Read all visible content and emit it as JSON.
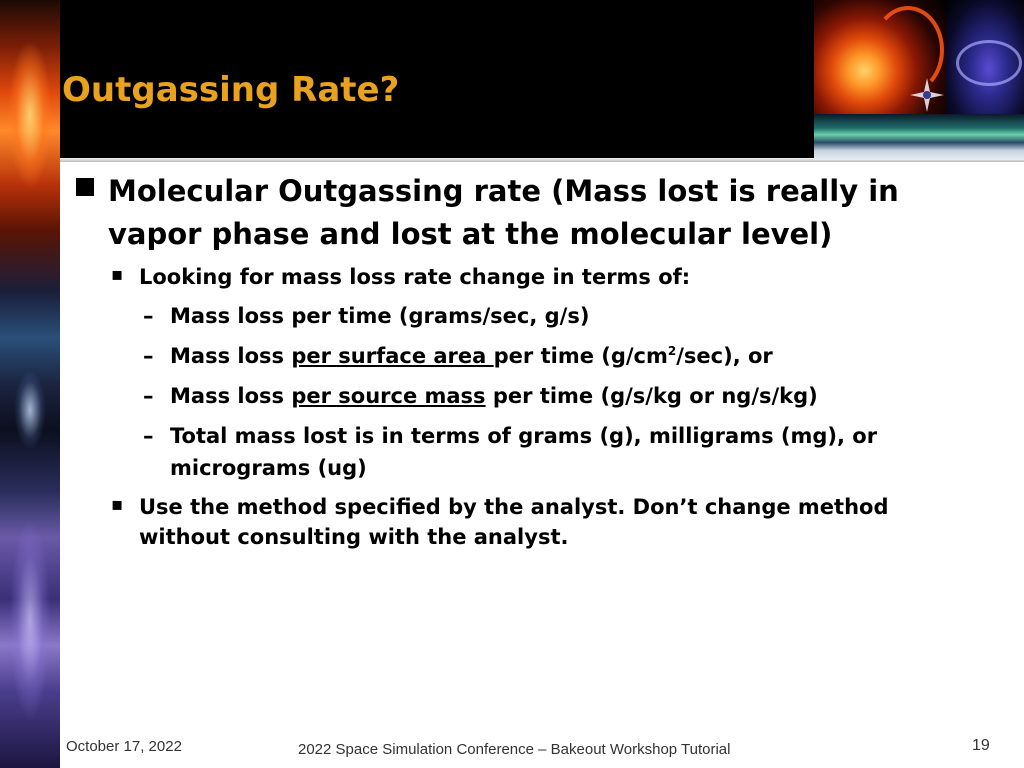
{
  "slide": {
    "title": "Outgassing Rate?",
    "bullets": {
      "b1": "Molecular Outgassing rate (Mass lost is really in vapor phase and lost at the molecular level)",
      "b1_1": "Looking for mass loss rate change in terms of:",
      "b1_1_a": "Mass loss per time (grams/sec, g/s)",
      "b1_1_b_pre": "Mass loss ",
      "b1_1_b_u": "per surface area ",
      "b1_1_b_mid": "per time (g/cm",
      "b1_1_b_sup": "2",
      "b1_1_b_post": "/sec), or",
      "b1_1_c_pre": "Mass loss ",
      "b1_1_c_u": "per source mass",
      "b1_1_c_post": " per time (g/s/kg or ng/s/kg)",
      "b1_1_d": "Total mass lost is in terms of grams (g), milligrams (mg), or micrograms (ug)",
      "b1_2": "Use the method specified by the analyst. Don’t change method without consulting with the analyst."
    },
    "symbols": {
      "dash": "–",
      "small_bullet": "▪"
    }
  },
  "footer": {
    "date": "October 17, 2022",
    "center": "2022 Space Simulation Conference – Bakeout Workshop Tutorial",
    "page": "19"
  },
  "colors": {
    "title": "#e8a21e",
    "header_bg": "#000000",
    "text": "#000000"
  }
}
